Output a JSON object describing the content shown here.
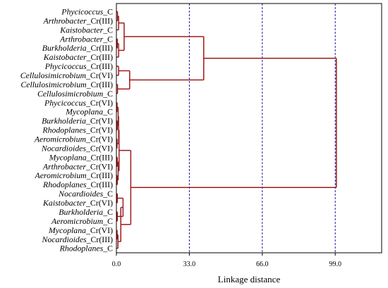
{
  "chart_data": {
    "type": "dendrogram",
    "xlabel": "Linkage distance",
    "xlim": [
      0,
      120
    ],
    "x_ticks": [
      0,
      33,
      66,
      99
    ],
    "x_tick_labels": [
      "0.0",
      "33.0",
      "66.0",
      "99.0"
    ],
    "reference_lines": [
      33,
      66,
      99
    ],
    "colors": {
      "links": "#a01a1a",
      "reference_lines": "#1a1aa6",
      "frame": "#000000"
    },
    "leaves": [
      {
        "name": "Phycicoccus",
        "suffix": "_C"
      },
      {
        "name": "Arthrobacter",
        "suffix": "_Cr(III)"
      },
      {
        "name": "Kaistobacter",
        "suffix": "_C"
      },
      {
        "name": "Arthrobacter",
        "suffix": "_C"
      },
      {
        "name": "Burkholderia",
        "suffix": "_Cr(III)"
      },
      {
        "name": "Kaistobacter",
        "suffix": "_Cr(III)"
      },
      {
        "name": "Phycicoccus",
        "suffix": "_Cr(III)"
      },
      {
        "name": "Cellulosimicrobium",
        "suffix": "_Cr(VI)"
      },
      {
        "name": "Cellulosimicrobium",
        "suffix": "_Cr(III)"
      },
      {
        "name": "Cellulosimicrobium",
        "suffix": "_C"
      },
      {
        "name": "Phycicoccus",
        "suffix": "_Cr(VI)"
      },
      {
        "name": "Mycoplana",
        "suffix": "_C"
      },
      {
        "name": "Burkholderia",
        "suffix": "_Cr(VI)"
      },
      {
        "name": "Rhodoplanes",
        "suffix": "_Cr(VI)"
      },
      {
        "name": "Aeromicrobium",
        "suffix": "_Cr(VI)"
      },
      {
        "name": "Nocardioides",
        "suffix": "_Cr(VI)"
      },
      {
        "name": "Mycoplana",
        "suffix": "_Cr(III)"
      },
      {
        "name": "Arthrobacter",
        "suffix": "_Cr(VI)"
      },
      {
        "name": "Aeromicrobium",
        "suffix": "_Cr(III)"
      },
      {
        "name": "Rhodoplanes",
        "suffix": "_Cr(III)"
      },
      {
        "name": "Nocardioides",
        "suffix": "_C"
      },
      {
        "name": "Kaistobacter",
        "suffix": "_Cr(VI)"
      },
      {
        "name": "Burkholderia",
        "suffix": "_C"
      },
      {
        "name": "Aeromicrobium",
        "suffix": "_C"
      },
      {
        "name": "Mycoplana",
        "suffix": "_Cr(VI)"
      },
      {
        "name": "Nocardioides",
        "suffix": "_Cr(III)"
      },
      {
        "name": "Rhodoplanes",
        "suffix": "_C"
      }
    ],
    "merges": [
      {
        "id": "a",
        "children": [
          "L0",
          "L1"
        ],
        "height": 0.5
      },
      {
        "id": "b",
        "children": [
          "a",
          "L2"
        ],
        "height": 1.0
      },
      {
        "id": "c",
        "children": [
          "L3",
          "L4"
        ],
        "height": 0.4
      },
      {
        "id": "d",
        "children": [
          "c",
          "L5"
        ],
        "height": 1.0
      },
      {
        "id": "e",
        "children": [
          "b",
          "d"
        ],
        "height": 3.5
      },
      {
        "id": "f",
        "children": [
          "L6",
          "L7"
        ],
        "height": 1.0
      },
      {
        "id": "g",
        "children": [
          "L8",
          "L9"
        ],
        "height": 0.5
      },
      {
        "id": "h",
        "children": [
          "f",
          "g"
        ],
        "height": 6.0
      },
      {
        "id": "i",
        "children": [
          "e",
          "h"
        ],
        "height": 39.5
      },
      {
        "id": "j",
        "children": [
          "L10",
          "L11"
        ],
        "height": 0.3
      },
      {
        "id": "k",
        "children": [
          "L12",
          "L13"
        ],
        "height": 0.4
      },
      {
        "id": "l",
        "children": [
          "j",
          "k"
        ],
        "height": 0.8
      },
      {
        "id": "m",
        "children": [
          "L14",
          "L15"
        ],
        "height": 0.3
      },
      {
        "id": "n",
        "children": [
          "l",
          "m"
        ],
        "height": 1.0
      },
      {
        "id": "o",
        "children": [
          "L16",
          "L17"
        ],
        "height": 0.4
      },
      {
        "id": "p",
        "children": [
          "L18",
          "L19"
        ],
        "height": 0.4
      },
      {
        "id": "q",
        "children": [
          "o",
          "p"
        ],
        "height": 0.8
      },
      {
        "id": "r",
        "children": [
          "n",
          "q"
        ],
        "height": 1.2
      },
      {
        "id": "s",
        "children": [
          "L20",
          "L21"
        ],
        "height": 0.4
      },
      {
        "id": "t",
        "children": [
          "L22",
          "L23"
        ],
        "height": 0.4
      },
      {
        "id": "u",
        "children": [
          "s",
          "t"
        ],
        "height": 3.0
      },
      {
        "id": "v",
        "children": [
          "L24",
          "L25"
        ],
        "height": 0.3
      },
      {
        "id": "w",
        "children": [
          "v",
          "L26"
        ],
        "height": 0.7
      },
      {
        "id": "x",
        "children": [
          "u",
          "w"
        ],
        "height": 2.0
      },
      {
        "id": "y",
        "children": [
          "r",
          "x"
        ],
        "height": 6.5
      },
      {
        "id": "z",
        "children": [
          "i",
          "y"
        ],
        "height": 99.5
      }
    ]
  }
}
